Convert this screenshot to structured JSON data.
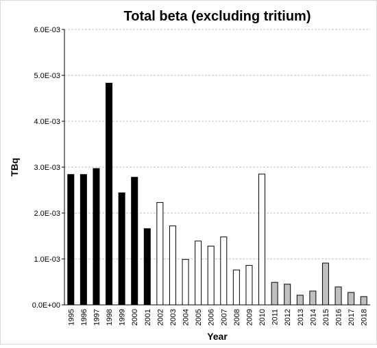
{
  "chart_data": {
    "type": "bar",
    "title": "Total beta (excluding tritium)",
    "x_label": "Year",
    "y_label": "TBq",
    "categories": [
      "1995",
      "1996",
      "1997",
      "1998",
      "1999",
      "2000",
      "2001",
      "2002",
      "2003",
      "2004",
      "2005",
      "2006",
      "2007",
      "2008",
      "2009",
      "2010",
      "2011",
      "2012",
      "2013",
      "2014",
      "2015",
      "2016",
      "2017",
      "2018"
    ],
    "values": [
      0.00284,
      0.00284,
      0.00297,
      0.00483,
      0.00244,
      0.00278,
      0.00166,
      0.00223,
      0.00172,
      0.00099,
      0.00139,
      0.00128,
      0.00148,
      0.00076,
      0.00086,
      0.00285,
      0.00049,
      0.00045,
      0.00021,
      0.0003,
      0.00091,
      0.00039,
      0.00027,
      0.00018
    ],
    "colors": [
      "#000000",
      "#000000",
      "#000000",
      "#000000",
      "#000000",
      "#000000",
      "#000000",
      "#ffffff",
      "#ffffff",
      "#ffffff",
      "#ffffff",
      "#ffffff",
      "#ffffff",
      "#ffffff",
      "#ffffff",
      "#ffffff",
      "#c0c0c0",
      "#c0c0c0",
      "#c0c0c0",
      "#c0c0c0",
      "#c0c0c0",
      "#c0c0c0",
      "#c0c0c0",
      "#c0c0c0"
    ],
    "ylim": [
      0,
      0.006
    ],
    "yticks": [
      {
        "value": 0,
        "label": "0.0E+00"
      },
      {
        "value": 0.001,
        "label": "1.0E-03"
      },
      {
        "value": 0.002,
        "label": "2.0E-03"
      },
      {
        "value": 0.003,
        "label": "3.0E-03"
      },
      {
        "value": 0.004,
        "label": "4.0E-03"
      },
      {
        "value": 0.005,
        "label": "5.0E-03"
      },
      {
        "value": 0.006,
        "label": "6.0E-03"
      }
    ],
    "grid": true
  }
}
